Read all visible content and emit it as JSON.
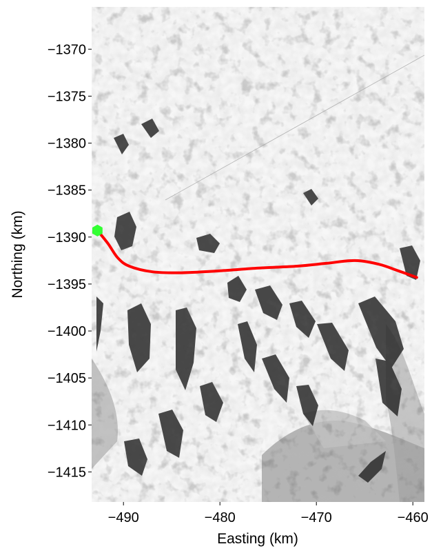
{
  "chart_data": {
    "type": "map-with-track",
    "xlabel": "Easting (km)",
    "ylabel": "Northing (km)",
    "xlim": [
      -493.3,
      -458.8
    ],
    "ylim": [
      -1418.2,
      -1365.5
    ],
    "x_ticks": [
      -490,
      -480,
      -470,
      -460
    ],
    "y_ticks": [
      -1370,
      -1375,
      -1380,
      -1385,
      -1390,
      -1395,
      -1400,
      -1405,
      -1410,
      -1415
    ],
    "x_tick_labels": [
      "−490",
      "−480",
      "−470",
      "−460"
    ],
    "y_tick_labels": [
      "−1370",
      "−1375",
      "−1380",
      "−1385",
      "−1390",
      "−1395",
      "−1400",
      "−1405",
      "−1410",
      "−1415"
    ],
    "background": "satellite-imagery-ice-sheet",
    "track": {
      "color": "#ff0000",
      "points": [
        [
          -492.7,
          -1389.3
        ],
        [
          -491.6,
          -1390.7
        ],
        [
          -490.6,
          -1392.2
        ],
        [
          -489.4,
          -1393.1
        ],
        [
          -487.0,
          -1393.7
        ],
        [
          -484.0,
          -1393.8
        ],
        [
          -480.0,
          -1393.6
        ],
        [
          -476.0,
          -1393.3
        ],
        [
          -472.0,
          -1393.1
        ],
        [
          -469.0,
          -1392.8
        ],
        [
          -466.0,
          -1392.5
        ],
        [
          -463.5,
          -1392.9
        ],
        [
          -461.5,
          -1393.6
        ],
        [
          -459.6,
          -1394.3
        ]
      ]
    },
    "start_marker": {
      "color": "#33ff33",
      "x": -492.7,
      "y": -1389.3,
      "shape": "hexagon"
    }
  }
}
